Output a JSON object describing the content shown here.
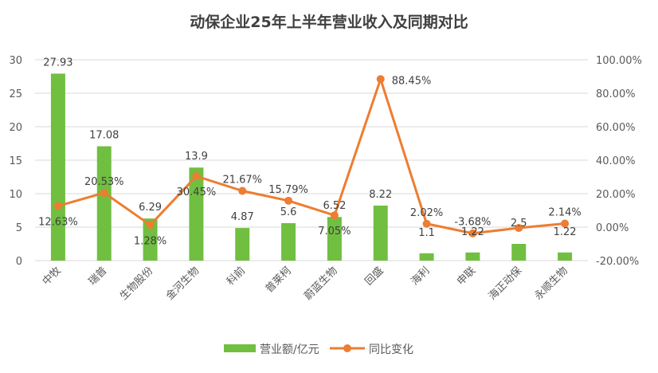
{
  "chart_data": {
    "type": "bar",
    "title": "动保企业25年上半年营业收入及同期对比",
    "categories": [
      "中牧",
      "瑞普",
      "生物股份",
      "金河生物",
      "科前",
      "普莱柯",
      "蔚蓝生物",
      "回盛",
      "海利",
      "申联",
      "海正动保",
      "永顺生物"
    ],
    "series": [
      {
        "name": "营业额/亿元",
        "type": "bar",
        "axis": "left",
        "color": "#70BF41",
        "values": [
          27.93,
          17.08,
          6.29,
          13.9,
          4.87,
          5.6,
          6.52,
          8.22,
          1.1,
          1.22,
          2.5,
          1.22
        ],
        "labels": [
          "27.93",
          "17.08",
          "6.29",
          "13.9",
          "4.87",
          "5.6",
          "6.52",
          "8.22",
          "1.1",
          "1.22",
          "2.5",
          "1.22"
        ]
      },
      {
        "name": "同比变化",
        "type": "line",
        "axis": "right",
        "color": "#ED7D31",
        "values": [
          12.63,
          20.53,
          1.28,
          30.45,
          21.67,
          15.79,
          7.05,
          88.45,
          2.02,
          -3.68,
          -0.5,
          2.14
        ],
        "labels": [
          "12.63%",
          "20.53%",
          "1.28%",
          "30.45%",
          "21.67%",
          "15.79%",
          "7.05%",
          "88.45%",
          "2.02%",
          "-3.68%",
          "",
          "2.14%"
        ]
      }
    ],
    "y_left": {
      "min": 0,
      "max": 30,
      "ticks": [
        "0",
        "5",
        "10",
        "15",
        "20",
        "25",
        "30"
      ]
    },
    "y_right": {
      "min": -20,
      "max": 100,
      "ticks": [
        "-20.00%",
        "0.00%",
        "20.00%",
        "40.00%",
        "60.00%",
        "80.00%",
        "100.00%"
      ]
    },
    "grid": true,
    "legend": "bottom"
  }
}
